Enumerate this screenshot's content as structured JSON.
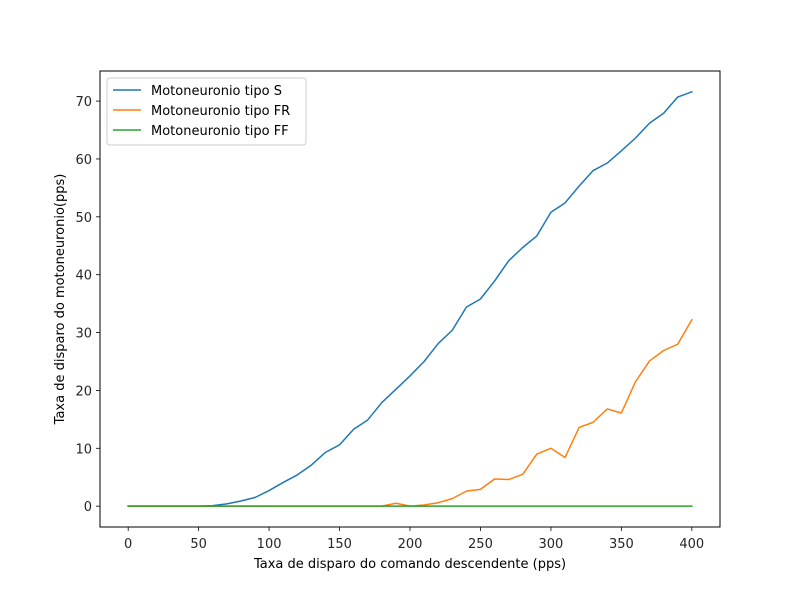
{
  "chart_data": {
    "type": "line",
    "title": "",
    "xlabel": "Taxa de disparo do comando descendente (pps)",
    "ylabel": "Taxa de disparo do motoneuronio(pps)",
    "xlim": [
      -20,
      420
    ],
    "ylim": [
      -3.6,
      75.2
    ],
    "xticks": [
      0,
      50,
      100,
      150,
      200,
      250,
      300,
      350,
      400
    ],
    "yticks": [
      0,
      10,
      20,
      30,
      40,
      50,
      60,
      70
    ],
    "xtick_labels": [
      "0",
      "50",
      "100",
      "150",
      "200",
      "250",
      "300",
      "350",
      "400"
    ],
    "ytick_labels": [
      "0",
      "10",
      "20",
      "30",
      "40",
      "50",
      "60",
      "70"
    ],
    "grid": false,
    "legend_position": "upper-left",
    "x": [
      0,
      10,
      20,
      30,
      40,
      50,
      60,
      70,
      80,
      90,
      100,
      110,
      120,
      130,
      140,
      150,
      160,
      170,
      180,
      190,
      200,
      210,
      220,
      230,
      240,
      250,
      260,
      270,
      280,
      290,
      300,
      310,
      320,
      330,
      340,
      350,
      360,
      370,
      380,
      390,
      400
    ],
    "series": [
      {
        "name": "Motoneuronio tipo S",
        "color": "#1f77b4",
        "values": [
          0,
          0,
          0,
          0,
          0,
          0,
          0.1,
          0.4,
          0.9,
          1.5,
          2.7,
          4.1,
          5.4,
          7.1,
          9.3,
          10.6,
          13.3,
          14.9,
          17.9,
          20.2,
          22.5,
          25.0,
          28.1,
          30.4,
          34.4,
          35.8,
          38.9,
          42.4,
          44.7,
          46.7,
          50.8,
          52.4,
          55.3,
          58.0,
          59.3,
          61.4,
          63.6,
          66.2,
          67.9,
          70.7,
          71.6
        ]
      },
      {
        "name": "Motoneuronio tipo FR",
        "color": "#ff7f0e",
        "values": [
          0,
          0,
          0,
          0,
          0,
          0,
          0,
          0,
          0,
          0,
          0,
          0,
          0,
          0,
          0,
          0,
          0,
          0,
          0,
          0.5,
          0,
          0.2,
          0.6,
          1.3,
          2.6,
          2.9,
          4.7,
          4.6,
          5.5,
          9.0,
          10.0,
          8.4,
          13.6,
          14.5,
          16.8,
          16.1,
          21.5,
          25.1,
          26.9,
          28.0,
          32.2
        ]
      },
      {
        "name": "Motoneuronio tipo FF",
        "color": "#2ca02c",
        "values": [
          0,
          0,
          0,
          0,
          0,
          0,
          0,
          0,
          0,
          0,
          0,
          0,
          0,
          0,
          0,
          0,
          0,
          0,
          0,
          0,
          0,
          0,
          0,
          0,
          0,
          0,
          0,
          0,
          0,
          0,
          0,
          0,
          0,
          0,
          0,
          0,
          0,
          0,
          0,
          0,
          0
        ]
      }
    ]
  }
}
